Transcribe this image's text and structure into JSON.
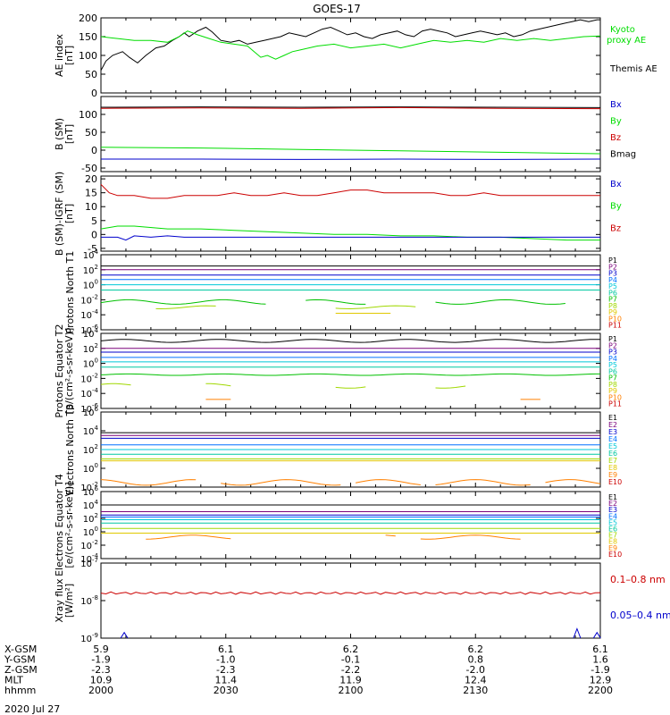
{
  "title": "GOES-17",
  "date_label": "2020 Jul 27",
  "colors": {
    "black": "#000000",
    "green": "#00dd00",
    "blue": "#0000cc",
    "red": "#cc0000",
    "p_colors": [
      "#000000",
      "#7a007a",
      "#0000cc",
      "#0070ff",
      "#00c8d8",
      "#00c8a0",
      "#00c000",
      "#a0d800",
      "#e0c800",
      "#ff8000",
      "#cc0000"
    ],
    "e_colors": [
      "#000000",
      "#7a007a",
      "#0000cc",
      "#0070ff",
      "#00c8d8",
      "#00c8a0",
      "#a0d800",
      "#e0c800",
      "#ff8000",
      "#cc0000"
    ]
  },
  "chart_data": [
    {
      "type": "line",
      "id": "ae",
      "ylabel": "AE index [nT]",
      "ylim": [
        0,
        200
      ],
      "yticks": [
        "0",
        "50",
        "100",
        "150",
        "200"
      ],
      "legend": [
        {
          "name": "Kyoto proxy AE",
          "color": "#00dd00"
        },
        {
          "name": "Themis AE",
          "color": "#000000"
        }
      ],
      "series": [
        {
          "name": "Themis AE",
          "color": "#000000",
          "x": [
            0,
            3,
            7,
            13,
            17,
            22,
            27,
            33,
            38,
            43,
            47,
            50,
            53,
            58,
            63,
            67,
            72,
            78,
            83,
            88,
            93,
            98,
            103,
            108,
            113,
            118,
            123,
            128,
            133,
            138,
            143,
            148,
            153,
            158,
            163,
            168,
            173,
            178,
            183,
            188,
            193,
            198,
            203,
            208,
            213,
            218,
            223,
            228,
            233,
            238,
            243,
            248,
            253,
            258,
            263,
            268,
            273,
            278,
            283,
            288,
            293,
            298,
            300
          ],
          "y": [
            60,
            85,
            100,
            110,
            95,
            80,
            100,
            120,
            125,
            140,
            150,
            160,
            150,
            165,
            175,
            162,
            140,
            135,
            140,
            130,
            135,
            140,
            145,
            150,
            160,
            155,
            150,
            160,
            170,
            175,
            165,
            155,
            160,
            150,
            145,
            155,
            160,
            165,
            155,
            150,
            165,
            170,
            165,
            160,
            150,
            155,
            160,
            165,
            160,
            155,
            160,
            150,
            155,
            165,
            170,
            175,
            180,
            185,
            190,
            195,
            190,
            195,
            195
          ]
        },
        {
          "name": "Kyoto proxy AE",
          "color": "#00dd00",
          "x": [
            0,
            10,
            20,
            30,
            40,
            47,
            52,
            58,
            65,
            72,
            80,
            88,
            92,
            96,
            100,
            105,
            110,
            115,
            120,
            125,
            130,
            140,
            150,
            160,
            170,
            180,
            185,
            190,
            195,
            200,
            210,
            220,
            230,
            240,
            250,
            260,
            270,
            280,
            290,
            300
          ],
          "y": [
            150,
            145,
            140,
            140,
            135,
            150,
            165,
            155,
            145,
            135,
            130,
            125,
            110,
            95,
            100,
            90,
            100,
            110,
            115,
            120,
            125,
            130,
            120,
            125,
            130,
            120,
            125,
            130,
            135,
            140,
            135,
            140,
            135,
            145,
            140,
            145,
            140,
            145,
            150,
            152
          ]
        }
      ]
    },
    {
      "type": "line",
      "id": "bsm",
      "ylabel": "B (SM) [nT]",
      "ylim": [
        -60,
        150
      ],
      "yticks": [
        "-50",
        "0",
        "50",
        "100"
      ],
      "legend": [
        {
          "name": "Bx",
          "color": "#0000cc"
        },
        {
          "name": "By",
          "color": "#00dd00"
        },
        {
          "name": "Bz",
          "color": "#cc0000"
        },
        {
          "name": "Bmag",
          "color": "#000000"
        }
      ],
      "series": [
        {
          "name": "Bmag",
          "color": "#000000",
          "x": [
            0,
            60,
            120,
            180,
            240,
            300
          ],
          "y": [
            120,
            121,
            120,
            121,
            120,
            119
          ]
        },
        {
          "name": "Bz",
          "color": "#cc0000",
          "x": [
            0,
            60,
            120,
            180,
            240,
            300
          ],
          "y": [
            117,
            118,
            117,
            119,
            117,
            116
          ]
        },
        {
          "name": "By",
          "color": "#00dd00",
          "x": [
            0,
            60,
            120,
            180,
            240,
            300
          ],
          "y": [
            8,
            6,
            2,
            -2,
            -6,
            -10
          ]
        },
        {
          "name": "Bx",
          "color": "#0000cc",
          "x": [
            0,
            60,
            120,
            180,
            240,
            300
          ],
          "y": [
            -25,
            -25,
            -26,
            -25,
            -26,
            -25
          ]
        }
      ]
    },
    {
      "type": "line",
      "id": "bigrf",
      "ylabel": "B (SM)-IGRF (SM) [nT]",
      "ylim": [
        -6,
        21
      ],
      "yticks": [
        "-5",
        "0",
        "5",
        "10",
        "15",
        "20"
      ],
      "legend": [
        {
          "name": "Bx",
          "color": "#0000cc"
        },
        {
          "name": "By",
          "color": "#00dd00"
        },
        {
          "name": "Bz",
          "color": "#cc0000"
        }
      ],
      "series": [
        {
          "name": "Bz",
          "color": "#cc0000",
          "x": [
            0,
            5,
            10,
            20,
            30,
            40,
            50,
            60,
            70,
            80,
            90,
            100,
            110,
            120,
            130,
            140,
            150,
            160,
            170,
            180,
            190,
            200,
            210,
            220,
            230,
            240,
            250,
            260,
            270,
            280,
            290,
            300
          ],
          "y": [
            18,
            15,
            14,
            14,
            13,
            13,
            14,
            14,
            14,
            15,
            14,
            14,
            15,
            14,
            14,
            15,
            16,
            16,
            15,
            15,
            15,
            15,
            14,
            14,
            15,
            14,
            14,
            14,
            14,
            14,
            14,
            14
          ]
        },
        {
          "name": "By",
          "color": "#00dd00",
          "x": [
            0,
            10,
            20,
            40,
            60,
            80,
            100,
            120,
            140,
            160,
            180,
            200,
            220,
            240,
            260,
            280,
            300
          ],
          "y": [
            2,
            3,
            3,
            2,
            2,
            1.5,
            1,
            0.5,
            0,
            0,
            -0.5,
            -0.5,
            -1,
            -1,
            -1.5,
            -2,
            -2
          ]
        },
        {
          "name": "Bx",
          "color": "#0000cc",
          "x": [
            0,
            10,
            15,
            20,
            30,
            40,
            50,
            60,
            80,
            100,
            120,
            140,
            160,
            180,
            200,
            220,
            240,
            260,
            280,
            300
          ],
          "y": [
            -1,
            -1,
            -2,
            -0.5,
            -1,
            -0.5,
            -1,
            -1,
            -1,
            -1,
            -1,
            -1,
            -1,
            -1,
            -1,
            -1,
            -1,
            -1,
            -1,
            -1
          ]
        }
      ]
    },
    {
      "type": "line",
      "id": "protons_t1",
      "scale": "log",
      "ylabel": "Protons North T1",
      "ylim_exp": [
        -6,
        4
      ],
      "ytick_exps": [
        -6,
        -4,
        -2,
        0,
        2,
        4
      ],
      "legend": [
        "P1",
        "P2",
        "P3",
        "P4",
        "P5",
        "P6",
        "P7",
        "P8",
        "P9",
        "P10",
        "P11"
      ],
      "levels_exp": [
        2.5,
        2.0,
        1.3,
        0.7,
        0.0,
        -0.7,
        -2.3,
        -3.0,
        -3.8,
        -8,
        -8
      ],
      "wobble": [
        0,
        0,
        0,
        0,
        0,
        0,
        0.3,
        0.2,
        0,
        0,
        0
      ],
      "gaps": [
        [],
        [],
        [],
        [],
        [],
        [],
        [
          [
            100,
            120
          ],
          [
            160,
            200
          ],
          [
            280,
            300
          ]
        ],
        [
          [
            0,
            30
          ],
          [
            70,
            140
          ],
          [
            190,
            300
          ]
        ],
        [
          [
            0,
            140
          ],
          [
            175,
            300
          ]
        ],
        [],
        []
      ]
    },
    {
      "type": "line",
      "id": "protons_t2",
      "scale": "log",
      "ylabel": "Protons Equator T2 [p/(cm²-s-sr-keV)]",
      "ylim_exp": [
        -6,
        4
      ],
      "ytick_exps": [
        -6,
        -4,
        -2,
        0,
        2,
        4
      ],
      "legend": [
        "P1",
        "P2",
        "P3",
        "P4",
        "P5",
        "P6",
        "P7",
        "P8",
        "P9",
        "P10",
        "P11"
      ],
      "levels_exp": [
        3.0,
        2.0,
        1.5,
        0.8,
        0.2,
        -0.5,
        -1.5,
        -3.0,
        -3.5,
        -4.8,
        -8
      ],
      "wobble": [
        0.2,
        0,
        0,
        0,
        0,
        0,
        0.1,
        0.3,
        0,
        0,
        0
      ],
      "gaps": [
        [],
        [],
        [],
        [],
        [],
        [],
        [],
        [
          [
            20,
            60
          ],
          [
            80,
            140
          ],
          [
            160,
            200
          ],
          [
            220,
            300
          ]
        ],
        [
          [
            0,
            300
          ]
        ],
        [
          [
            0,
            60
          ],
          [
            80,
            250
          ],
          [
            265,
            300
          ]
        ],
        []
      ]
    },
    {
      "type": "line",
      "id": "electrons_t3",
      "scale": "log",
      "ylabel": "Electrons North T3",
      "ylim_exp": [
        -2,
        6
      ],
      "ytick_exps": [
        -2,
        0,
        2,
        4,
        6
      ],
      "legend": [
        "E1",
        "E2",
        "E3",
        "E4",
        "E5",
        "E6",
        "E7",
        "E8",
        "E9",
        "E10"
      ],
      "levels_exp": [
        3.8,
        3.5,
        3.2,
        2.5,
        2.0,
        1.5,
        1.0,
        0.8,
        -1.5,
        -9
      ],
      "wobble": [
        0,
        0,
        0,
        0,
        0,
        0,
        0,
        0,
        0.3,
        0
      ],
      "gaps": [
        [],
        [],
        [],
        [],
        [],
        [],
        [],
        [],
        [
          [
            60,
            70
          ],
          [
            145,
            150
          ],
          [
            195,
            200
          ],
          [
            260,
            265
          ]
        ],
        []
      ]
    },
    {
      "type": "line",
      "id": "electrons_t4",
      "scale": "log",
      "ylabel": "Electrons Equator T4 [e/(cm²-s-sr-keV)]",
      "ylim_exp": [
        -4,
        6
      ],
      "ytick_exps": [
        -4,
        -2,
        0,
        2,
        4,
        6
      ],
      "legend": [
        "E1",
        "E2",
        "E3",
        "E4",
        "E5",
        "E6",
        "E7",
        "E8",
        "E9",
        "E10"
      ],
      "levels_exp": [
        4.0,
        3.0,
        2.5,
        2.2,
        1.8,
        1.3,
        0.5,
        -0.2,
        -0.8,
        -9
      ],
      "wobble": [
        0,
        0,
        0,
        0,
        0,
        0,
        0,
        0,
        0.3,
        0
      ],
      "gaps": [
        [],
        [],
        [],
        [],
        [],
        [],
        [],
        [],
        [
          [
            0,
            25
          ],
          [
            80,
            170
          ],
          [
            180,
            190
          ],
          [
            255,
            300
          ]
        ],
        []
      ]
    },
    {
      "type": "line",
      "id": "xray",
      "scale": "log",
      "ylabel": "Xray flux [W/m²]",
      "ylim_exp": [
        -9,
        -7
      ],
      "ytick_exps": [
        -9,
        -8,
        -7
      ],
      "legend": [
        {
          "name": "0.1–0.8 nm",
          "color": "#cc0000"
        },
        {
          "name": "0.05–0.4 nm",
          "color": "#0000cc"
        }
      ],
      "levels_exp": [
        -7.8
      ],
      "blue_peaks": [
        [
          14,
          -8.85
        ],
        [
          286,
          -8.75
        ],
        [
          298,
          -8.85
        ]
      ]
    }
  ],
  "x_axis": {
    "xlim": [
      0,
      300
    ],
    "row_labels": [
      "X-GSM",
      "Y-GSM",
      "Z-GSM",
      "MLT",
      "hhmm"
    ],
    "ticks": [
      {
        "x": 0,
        "values": [
          "5.9",
          "-1.9",
          "-2.3",
          "10.9",
          "2000"
        ]
      },
      {
        "x": 75,
        "values": [
          "6.1",
          "-1.0",
          "-2.3",
          "11.4",
          "2030"
        ]
      },
      {
        "x": 150,
        "values": [
          "6.2",
          "-0.1",
          "-2.2",
          "11.9",
          "2100"
        ]
      },
      {
        "x": 225,
        "values": [
          "6.2",
          "0.8",
          "-2.0",
          "12.4",
          "2130"
        ]
      },
      {
        "x": 300,
        "values": [
          "6.1",
          "1.6",
          "-1.9",
          "12.9",
          "2200"
        ]
      }
    ]
  }
}
